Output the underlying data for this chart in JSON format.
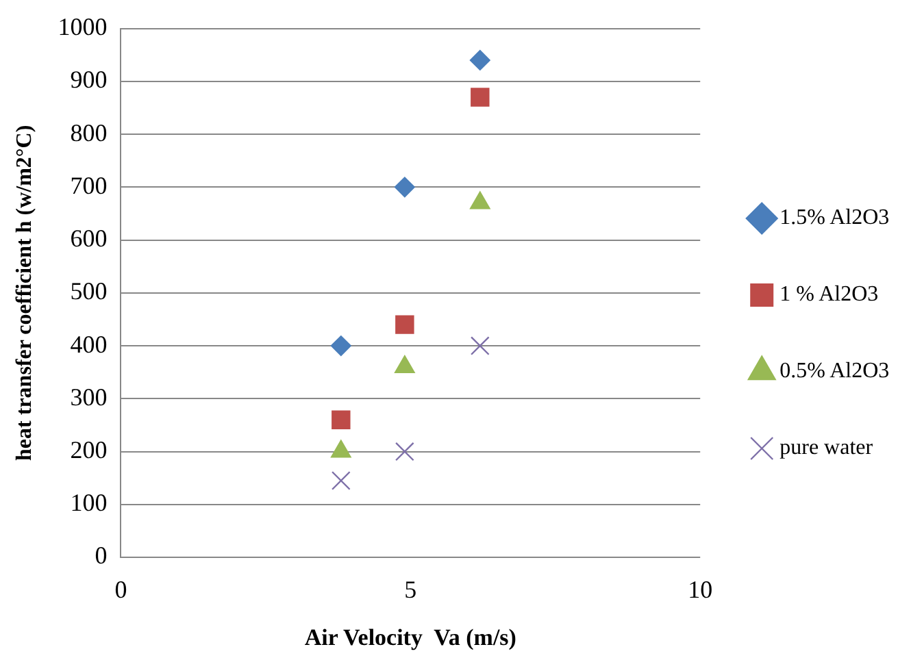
{
  "chart_data": {
    "type": "scatter",
    "xlabel": "Air Velocity  Va (m/s)",
    "ylabel": "heat transfer coefficient h (w/m2°C)",
    "xlim": [
      0,
      10
    ],
    "xticks": [
      0,
      5,
      10
    ],
    "ylim": [
      0,
      1000
    ],
    "yticks": [
      0,
      100,
      200,
      300,
      400,
      500,
      600,
      700,
      800,
      900,
      1000
    ],
    "grid": "y",
    "legend": "right",
    "series": [
      {
        "name": "1.5% Al2O3",
        "color": "#4a7ebb",
        "marker": "diamond",
        "x": [
          3.8,
          4.9,
          6.2
        ],
        "values": [
          400,
          700,
          940
        ]
      },
      {
        "name": "1 % Al2O3",
        "color": "#be4b48",
        "marker": "square",
        "x": [
          3.8,
          4.9,
          6.2
        ],
        "values": [
          260,
          440,
          870
        ]
      },
      {
        "name": "0.5% Al2O3",
        "color": "#98b954",
        "marker": "triangle",
        "x": [
          3.8,
          4.9,
          6.2
        ],
        "values": [
          200,
          360,
          670
        ]
      },
      {
        "name": "pure water",
        "color": "#7d6fa8",
        "marker": "cross",
        "x": [
          3.8,
          4.9,
          6.2
        ],
        "values": [
          145,
          200,
          400
        ]
      }
    ]
  }
}
